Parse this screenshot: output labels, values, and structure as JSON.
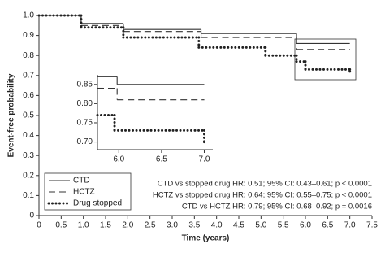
{
  "chart_data": [
    {
      "type": "step",
      "y_label": "Event-free probability",
      "x_label": "Time (years)",
      "xlim": [
        0,
        7.5
      ],
      "ylim": [
        0,
        1
      ],
      "xticks": [
        0,
        0.5,
        {
          "value": 1,
          "label": "1.0"
        },
        1.5,
        {
          "value": 2,
          "label": "2.0"
        },
        2.5,
        {
          "value": 3,
          "label": "3.0"
        },
        3.5,
        {
          "value": 4,
          "label": "4.0"
        },
        4.5,
        {
          "value": 5,
          "label": "5.0"
        },
        5.5,
        {
          "value": 6,
          "label": "6.0"
        },
        6.5,
        {
          "value": 7,
          "label": "7.0"
        },
        7.5
      ],
      "yticks": [
        0,
        0.1,
        0.2,
        0.3,
        0.4,
        0.5,
        0.6,
        0.7,
        0.8,
        0.9,
        {
          "value": 1,
          "label": "1.0"
        }
      ],
      "legend": "lower left",
      "series": [
        {
          "name": "CTD",
          "color": "#333333",
          "style": "solid",
          "x": [
            0,
            0.95,
            1.9,
            3.65,
            5.8,
            7.0
          ],
          "values": [
            1.0,
            0.96,
            0.93,
            0.91,
            0.86,
            0.86
          ]
        },
        {
          "name": "HCTZ",
          "color": "#333333",
          "style": "dashed",
          "x": [
            0,
            0.95,
            1.9,
            3.65,
            5.8,
            7.0
          ],
          "values": [
            1.0,
            0.95,
            0.92,
            0.89,
            0.83,
            0.83
          ]
        },
        {
          "name": "Drug stopped",
          "color": "#222222",
          "style": "dotted",
          "x": [
            0,
            0.95,
            1.9,
            3.6,
            5.1,
            5.8,
            6.0,
            7.0
          ],
          "values": [
            1.0,
            0.94,
            0.89,
            0.84,
            0.8,
            0.77,
            0.73,
            0.72
          ]
        }
      ],
      "annotations": [
        "CTD vs stopped drug HR: 0.51; 95% CI: 0.43–0.61; p < 0.0001",
        "HCTZ vs stopped drug HR: 0.64; 95% CI: 0.55–0.75; p < 0.0001",
        "CTD vs HCTZ HR: 0.79; 95% CI: 0.68–0.92; p = 0.0016"
      ]
    },
    {
      "type": "step",
      "xlim": [
        5.75,
        7.1
      ],
      "ylim": [
        0.68,
        0.875
      ],
      "xticks": [
        {
          "value": 6,
          "label": "6.0"
        },
        6.5,
        {
          "value": 7,
          "label": "7.0"
        }
      ],
      "yticks": [
        {
          "value": 0.7,
          "label": "0.70"
        },
        0.75,
        {
          "value": 0.8,
          "label": "0.80"
        },
        0.85
      ],
      "series": [
        {
          "color": "#333333",
          "style": "solid",
          "x": [
            5.75,
            5.98,
            7.0
          ],
          "values": [
            0.87,
            0.85,
            0.85
          ]
        },
        {
          "color": "#333333",
          "style": "dashed",
          "x": [
            5.75,
            5.98,
            7.0
          ],
          "values": [
            0.84,
            0.81,
            0.81
          ]
        },
        {
          "color": "#222222",
          "style": "dotted",
          "x": [
            5.75,
            5.95,
            7.0
          ],
          "values": [
            0.77,
            0.73,
            0.7
          ]
        }
      ]
    }
  ]
}
